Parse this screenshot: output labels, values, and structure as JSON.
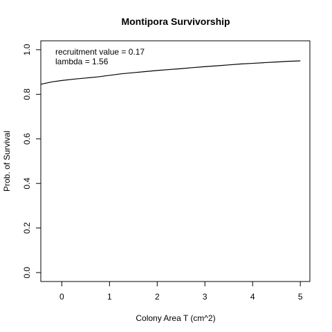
{
  "chart_data": {
    "type": "line",
    "title": "Montipora Survivorship",
    "xlabel": "Colony Area T (cm^2)",
    "ylabel": "Prob. of Survival",
    "xlim": [
      -0.44,
      5.2
    ],
    "ylim": [
      -0.04,
      1.04
    ],
    "x_ticks": [
      0,
      1,
      2,
      3,
      4,
      5
    ],
    "y_ticks": [
      0.0,
      0.2,
      0.4,
      0.6,
      0.8,
      1.0
    ],
    "x_tick_labels": [
      "0",
      "1",
      "2",
      "3",
      "4",
      "5"
    ],
    "y_tick_labels": [
      "0.0",
      "0.2",
      "0.4",
      "0.6",
      "0.8",
      "1.0"
    ],
    "grid": false,
    "annotations": [
      "recruitment value = 0.17",
      "lambda = 1.56"
    ],
    "series": [
      {
        "x": [
          -0.44,
          -0.2,
          0,
          0.25,
          0.5,
          0.75,
          1,
          1.25,
          1.5,
          1.75,
          2,
          2.25,
          2.5,
          2.75,
          3,
          3.25,
          3.5,
          3.75,
          4,
          4.25,
          4.5,
          4.75,
          5
        ],
        "values": [
          0.845,
          0.856,
          0.862,
          0.868,
          0.873,
          0.878,
          0.885,
          0.892,
          0.897,
          0.902,
          0.907,
          0.911,
          0.915,
          0.92,
          0.924,
          0.928,
          0.932,
          0.936,
          0.939,
          0.942,
          0.945,
          0.948,
          0.95
        ]
      }
    ]
  }
}
